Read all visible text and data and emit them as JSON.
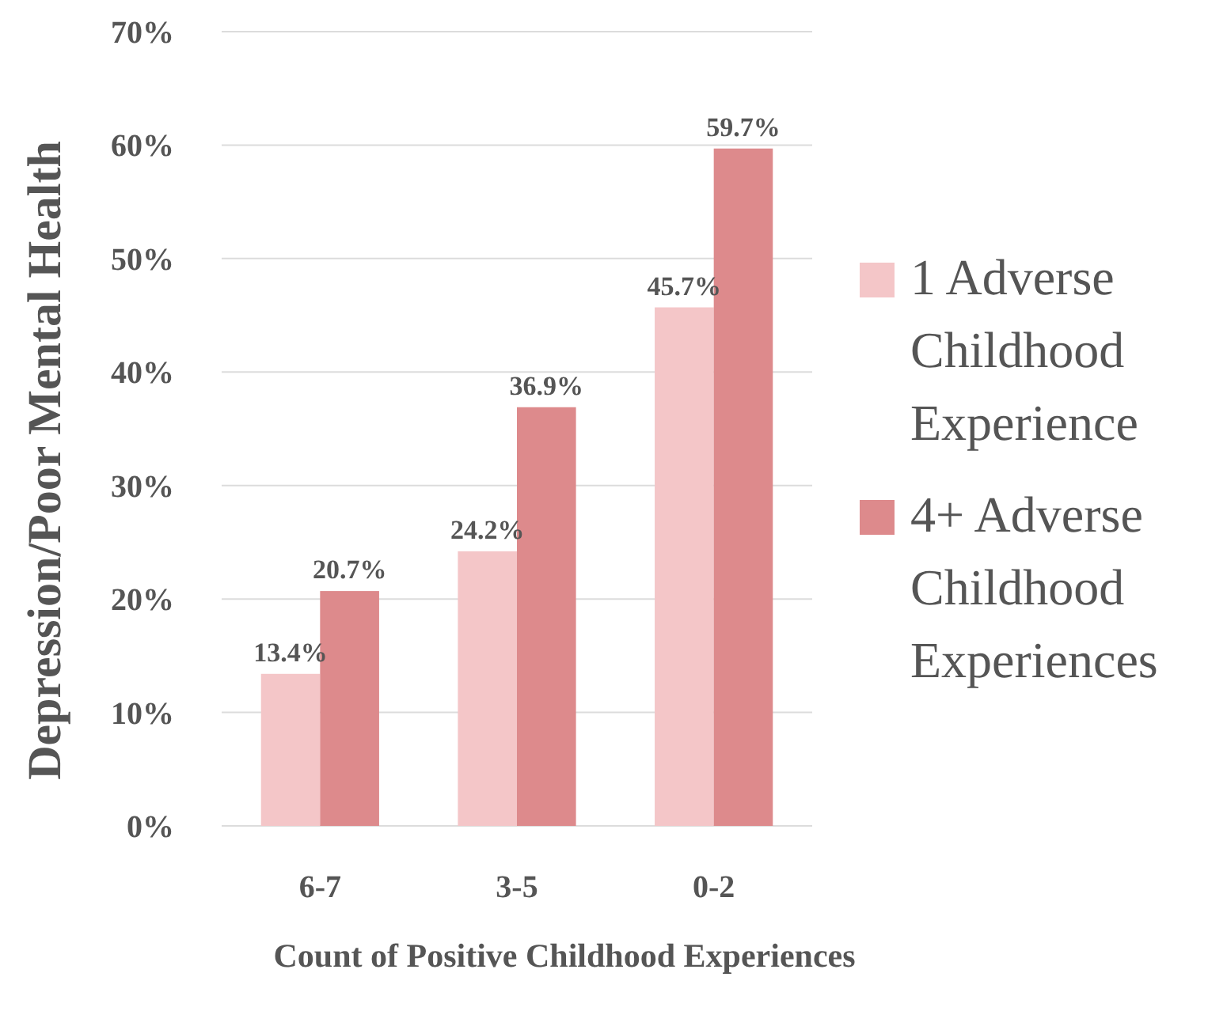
{
  "chart_data": {
    "type": "bar",
    "ylabel": "Depression/Poor Mental Health",
    "xlabel": "Count of Positive Childhood Experiences",
    "categories": [
      "6-7",
      "3-5",
      "0-2"
    ],
    "series": [
      {
        "name": "1 Adverse Childhood Experience",
        "color": "#f4c6c8",
        "values": [
          13.4,
          24.2,
          45.7
        ],
        "value_labels": [
          "13.4%",
          "24.2%",
          "45.7%"
        ]
      },
      {
        "name": "4+ Adverse Childhood Experiences",
        "color": "#dd8a8c",
        "values": [
          20.7,
          36.9,
          59.7
        ],
        "value_labels": [
          "20.7%",
          "36.9%",
          "59.7%"
        ]
      }
    ],
    "ylim": [
      0,
      70
    ],
    "yticks": [
      {
        "value": 0,
        "label": "0%"
      },
      {
        "value": 10,
        "label": "10%"
      },
      {
        "value": 20,
        "label": "20%"
      },
      {
        "value": 30,
        "label": "30%"
      },
      {
        "value": 40,
        "label": "40%"
      },
      {
        "value": 50,
        "label": "50%"
      },
      {
        "value": 60,
        "label": "60%"
      },
      {
        "value": 70,
        "label": "70%"
      }
    ],
    "grid": "y",
    "legend": "right"
  }
}
